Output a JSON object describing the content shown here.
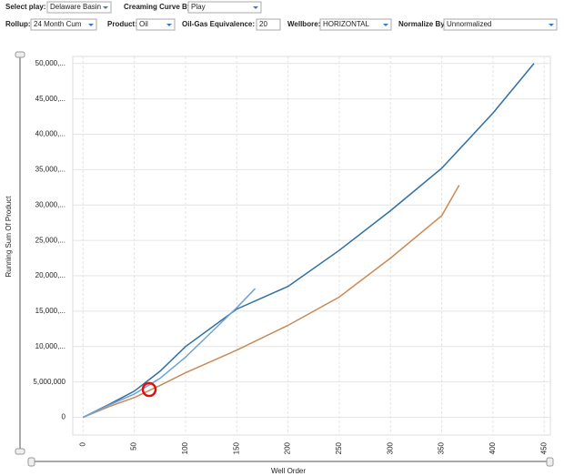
{
  "controls": [
    {
      "label": "Select play:",
      "value": "Delaware Basin"
    },
    {
      "label": "Creaming Curve By:",
      "value": "Play"
    },
    {
      "label": "Rollup:",
      "value": "24 Month Cum"
    },
    {
      "label": "Product:",
      "value": "Oil"
    },
    {
      "label": "Oil-Gas Equivalence:",
      "value": "20"
    },
    {
      "label": "Wellbore:",
      "value": "HORIZONTAL"
    },
    {
      "label": "Normalize By:",
      "value": "Unnormalized"
    }
  ],
  "chart_data": {
    "type": "line",
    "x_label": "Well Order",
    "y_label": "Running Sum Of Product",
    "series": [
      {
        "color": "#2f6fa3",
        "x": [
          0,
          25,
          50,
          75,
          100,
          150,
          200,
          250,
          300,
          350,
          400,
          440
        ],
        "values": [
          0,
          1800000,
          3700000,
          6500000,
          10000000,
          15300000,
          18500000,
          23600000,
          29200000,
          35200000,
          43000000,
          50000000
        ]
      },
      {
        "color": "#c98a55",
        "x": [
          0,
          25,
          50,
          75,
          100,
          150,
          200,
          250,
          300,
          350,
          367
        ],
        "values": [
          0,
          1500000,
          2800000,
          4500000,
          6300000,
          9500000,
          13000000,
          17000000,
          22500000,
          28500000,
          32800000
        ]
      },
      {
        "color": "#6fa3d4",
        "x": [
          0,
          25,
          50,
          75,
          100,
          125,
          150,
          168
        ],
        "values": [
          0,
          1700000,
          3300000,
          5500000,
          8500000,
          12000000,
          15500000,
          18200000
        ]
      }
    ],
    "xlim": [
      -10,
      456
    ],
    "xticks": [
      0,
      50,
      100,
      150,
      200,
      250,
      300,
      350,
      400,
      450
    ],
    "ylim": [
      -2500000,
      51000000
    ],
    "yticks": [
      0,
      {
        "value": 5000000,
        "label": "5,000,000"
      },
      {
        "value": 10000000,
        "label": "10,000,..."
      },
      {
        "value": 15000000,
        "label": "15,000,..."
      },
      {
        "value": 20000000,
        "label": "20,000,..."
      },
      {
        "value": 25000000,
        "label": "25,000,..."
      },
      {
        "value": 30000000,
        "label": "30,000,..."
      },
      {
        "value": 35000000,
        "label": "35,000,..."
      },
      {
        "value": 40000000,
        "label": "40,000,..."
      },
      {
        "value": 45000000,
        "label": "45,000,..."
      },
      {
        "value": 50000000,
        "label": "50,000,..."
      }
    ],
    "grid": true
  }
}
